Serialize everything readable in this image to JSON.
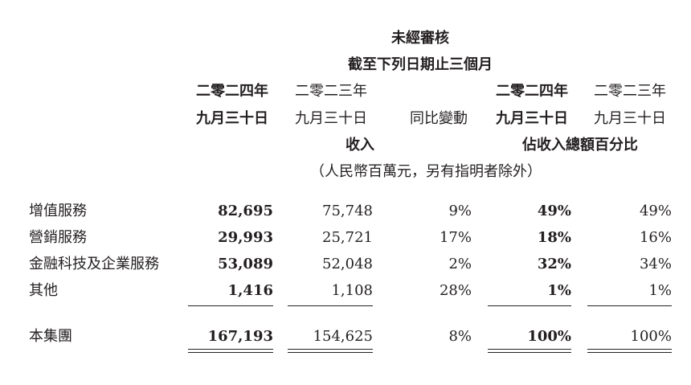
{
  "header": {
    "audit_status": "未經審核",
    "period": "截至下列日期止三個月",
    "col1_year": "二零二四年",
    "col1_date": "九月三十日",
    "col2_year": "二零二三年",
    "col2_date": "九月三十日",
    "col3_label": "同比變動",
    "col4_year": "二零二四年",
    "col4_date": "九月三十日",
    "col5_year": "二零二三年",
    "col5_date": "九月三十日",
    "revenue_label": "收入",
    "pct_label": "佔收入總額百分比",
    "unit_note": "（人民幣百萬元，另有指明者除外）"
  },
  "rows": [
    {
      "label": "增值服務",
      "rev_2024": "82,695",
      "rev_2023": "75,748",
      "yoy": "9%",
      "pct_2024": "49%",
      "pct_2023": "49%"
    },
    {
      "label": "營銷服務",
      "rev_2024": "29,993",
      "rev_2023": "25,721",
      "yoy": "17%",
      "pct_2024": "18%",
      "pct_2023": "16%"
    },
    {
      "label": "金融科技及企業服務",
      "rev_2024": "53,089",
      "rev_2023": "52,048",
      "yoy": "2%",
      "pct_2024": "32%",
      "pct_2023": "34%"
    },
    {
      "label": "其他",
      "rev_2024": "1,416",
      "rev_2023": "1,108",
      "yoy": "28%",
      "pct_2024": "1%",
      "pct_2023": "1%"
    }
  ],
  "total": {
    "label": "本集團",
    "rev_2024": "167,193",
    "rev_2023": "154,625",
    "yoy": "8%",
    "pct_2024": "100%",
    "pct_2023": "100%"
  }
}
